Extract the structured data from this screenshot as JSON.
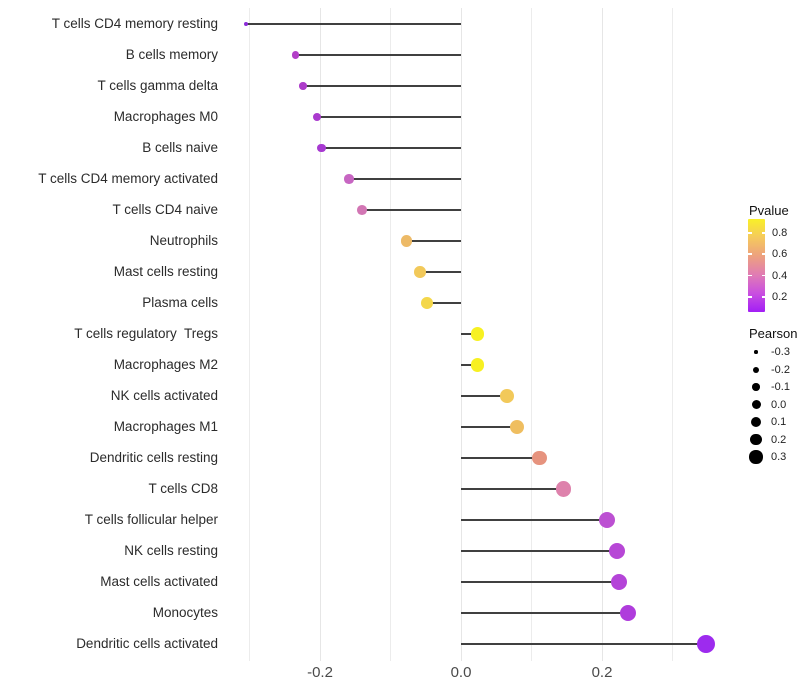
{
  "chart_data": {
    "type": "scatter",
    "subtype": "lollipop",
    "title": "",
    "xlabel": "",
    "ylabel": "",
    "xlim": [
      -0.34,
      0.38
    ],
    "grid": true,
    "x_ticks": {
      "major": [
        -0.2,
        0.0,
        0.2
      ],
      "minor": [
        -0.3,
        -0.1,
        0.1,
        0.3
      ],
      "labels": [
        "-0.2",
        "0.0",
        "0.2"
      ]
    },
    "points": [
      {
        "label": "T cells CD4 memory resting",
        "pearson": -0.305,
        "pvalue": 0.12,
        "color": "#8B2BD8"
      },
      {
        "label": "B cells memory",
        "pearson": -0.235,
        "pvalue": 0.21,
        "color": "#B23FC7"
      },
      {
        "label": "T cells gamma delta",
        "pearson": -0.224,
        "pvalue": 0.2,
        "color": "#AD3CCA"
      },
      {
        "label": "Macrophages M0",
        "pearson": -0.204,
        "pvalue": 0.18,
        "color": "#AA3ACE"
      },
      {
        "label": "B cells naive",
        "pearson": -0.198,
        "pvalue": 0.17,
        "color": "#A739D1"
      },
      {
        "label": "T cells CD4 memory activated",
        "pearson": -0.159,
        "pvalue": 0.33,
        "color": "#C766C2"
      },
      {
        "label": "T cells CD4 naive",
        "pearson": -0.14,
        "pvalue": 0.38,
        "color": "#D276B4"
      },
      {
        "label": "Neutrophils",
        "pearson": -0.077,
        "pvalue": 0.62,
        "color": "#EDBA67"
      },
      {
        "label": "Mast cells resting",
        "pearson": -0.058,
        "pvalue": 0.68,
        "color": "#F2C95A"
      },
      {
        "label": "Plasma cells",
        "pearson": -0.048,
        "pvalue": 0.73,
        "color": "#F4D74B"
      },
      {
        "label": "T cells regulatory  Tregs",
        "pearson": 0.024,
        "pvalue": 0.9,
        "color": "#F7F122"
      },
      {
        "label": "Macrophages M2",
        "pearson": 0.024,
        "pvalue": 0.89,
        "color": "#F7F022"
      },
      {
        "label": "NK cells activated",
        "pearson": 0.065,
        "pvalue": 0.69,
        "color": "#F2C95A"
      },
      {
        "label": "Macrophages M1",
        "pearson": 0.079,
        "pvalue": 0.64,
        "color": "#EFBE60"
      },
      {
        "label": "Dendritic cells resting",
        "pearson": 0.111,
        "pvalue": 0.5,
        "color": "#E6937E"
      },
      {
        "label": "T cells CD8",
        "pearson": 0.146,
        "pvalue": 0.42,
        "color": "#DE82AC"
      },
      {
        "label": "T cells follicular helper",
        "pearson": 0.207,
        "pvalue": 0.27,
        "color": "#BC50D2"
      },
      {
        "label": "NK cells resting",
        "pearson": 0.221,
        "pvalue": 0.24,
        "color": "#B747D6"
      },
      {
        "label": "Mast cells activated",
        "pearson": 0.224,
        "pvalue": 0.23,
        "color": "#B444D8"
      },
      {
        "label": "Monocytes",
        "pearson": 0.237,
        "pvalue": 0.2,
        "color": "#AF3CDC"
      },
      {
        "label": "Dendritic cells activated",
        "pearson": 0.347,
        "pvalue": 0.12,
        "color": "#9D2BEE"
      }
    ],
    "legends": {
      "pvalue": {
        "title": "Pvalue",
        "ticks": [
          "0.8",
          "0.6",
          "0.4",
          "0.2"
        ],
        "gradient_top_to_bottom": [
          "#F9F028",
          "#F5C95D",
          "#EDA07F",
          "#E07CB4",
          "#C94FE0",
          "#A21EF5"
        ],
        "range": [
          0.93,
          0.06
        ]
      },
      "pearson": {
        "title": "Pearson",
        "ticks": [
          "-0.3",
          "-0.2",
          "-0.1",
          "0.0",
          "0.1",
          "0.2",
          "0.3"
        ],
        "dot_color": "#000000"
      }
    },
    "colors": {
      "stem": "#404040",
      "gridline": "#ececec",
      "axis_text": "#4a4a4a",
      "label_text": "#2b2b2b"
    }
  }
}
